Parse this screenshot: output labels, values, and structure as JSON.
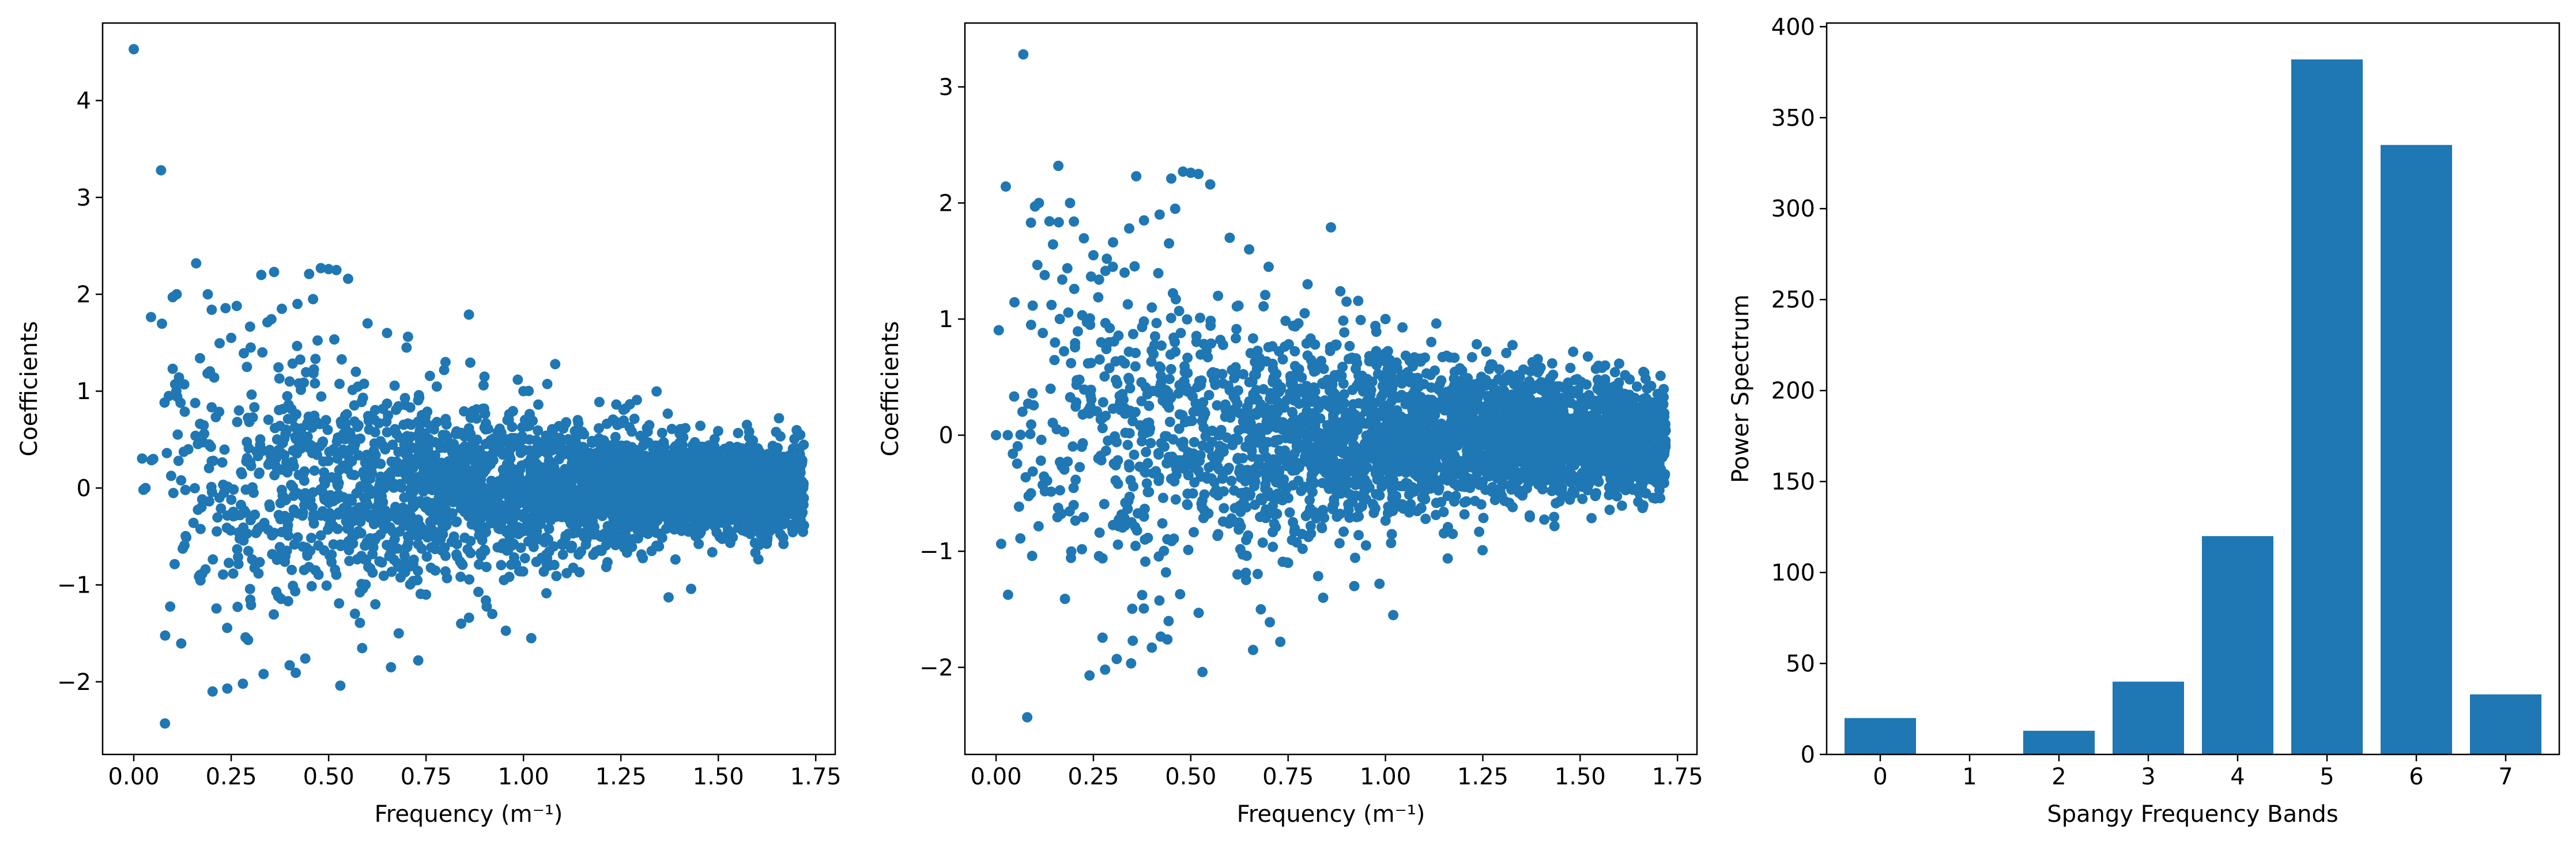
{
  "colors": {
    "marker": "#1f77b4",
    "axes": "#000000",
    "background": "#ffffff"
  },
  "chart_data": [
    {
      "type": "scatter",
      "title": "",
      "xlabel": "Frequency (m⁻¹)",
      "ylabel": "Coefficients",
      "xlim": [
        -0.08,
        1.8
      ],
      "ylim": [
        -2.75,
        4.8
      ],
      "xticks": [
        0.0,
        0.25,
        0.5,
        0.75,
        1.0,
        1.25,
        1.5,
        1.75
      ],
      "xtick_labels": [
        "0.00",
        "0.25",
        "0.50",
        "0.75",
        "1.00",
        "1.25",
        "1.50",
        "1.75"
      ],
      "yticks": [
        -2,
        -1,
        0,
        1,
        2,
        3,
        4
      ],
      "ytick_labels": [
        "−2",
        "−1",
        "0",
        "1",
        "2",
        "3",
        "4"
      ],
      "grid": false,
      "x": [
        0.0,
        0.07,
        0.1,
        0.11,
        0.16,
        0.19,
        0.2,
        0.12,
        0.17,
        0.36,
        0.45,
        0.48,
        0.5,
        0.52,
        0.55,
        0.86,
        0.46,
        0.38,
        0.42,
        0.3,
        0.25,
        0.33,
        0.6,
        0.65,
        0.7,
        0.8,
        0.9,
        1.0,
        0.05,
        0.03,
        0.09,
        0.14,
        0.22,
        0.27,
        0.4,
        0.57,
        0.62,
        0.68,
        0.75,
        0.95,
        1.02,
        0.08,
        0.24,
        0.28,
        0.4,
        0.44,
        0.53,
        0.66,
        0.73,
        0.84,
        0.92
      ],
      "y": [
        4.53,
        3.28,
        1.97,
        2.0,
        2.32,
        2.0,
        1.84,
        0.88,
        1.34,
        2.23,
        2.21,
        2.27,
        2.26,
        2.25,
        2.16,
        1.79,
        1.95,
        1.85,
        1.9,
        1.45,
        1.55,
        1.4,
        1.7,
        1.6,
        1.45,
        1.3,
        1.15,
        1.0,
        0.3,
        0.0,
        0.95,
        0.4,
        -0.1,
        0.8,
        1.1,
        1.2,
        -1.2,
        -1.5,
        -1.1,
        -0.95,
        -1.55,
        -2.43,
        -2.07,
        -2.02,
        -1.83,
        -1.76,
        -2.04,
        -1.85,
        -1.78,
        -1.4,
        -1.3
      ],
      "x_max": 1.72,
      "cloud_envelope": {
        "note_free": true
      }
    },
    {
      "type": "scatter",
      "title": "",
      "xlabel": "Frequency (m⁻¹)",
      "ylabel": "Coefficients",
      "xlim": [
        -0.08,
        1.8
      ],
      "ylim": [
        -2.75,
        3.55
      ],
      "xticks": [
        0.0,
        0.25,
        0.5,
        0.75,
        1.0,
        1.25,
        1.5,
        1.75
      ],
      "xtick_labels": [
        "0.00",
        "0.25",
        "0.50",
        "0.75",
        "1.00",
        "1.25",
        "1.50",
        "1.75"
      ],
      "yticks": [
        -2,
        -1,
        0,
        1,
        2,
        3
      ],
      "ytick_labels": [
        "−2",
        "−1",
        "0",
        "1",
        "2",
        "3"
      ],
      "grid": false,
      "x": [
        0.07,
        0.1,
        0.11,
        0.16,
        0.19,
        0.2,
        0.12,
        0.17,
        0.36,
        0.45,
        0.48,
        0.5,
        0.52,
        0.55,
        0.86,
        0.46,
        0.38,
        0.42,
        0.3,
        0.25,
        0.33,
        0.6,
        0.65,
        0.7,
        0.8,
        0.9,
        1.0,
        0.0,
        0.03,
        0.09,
        0.14,
        0.22,
        0.27,
        0.4,
        0.57,
        0.62,
        0.68,
        0.75,
        0.95,
        1.02,
        0.08,
        0.24,
        0.28,
        0.4,
        0.44,
        0.53,
        0.66,
        0.73,
        0.84,
        0.92
      ],
      "y": [
        3.28,
        1.97,
        2.0,
        2.32,
        2.0,
        1.84,
        0.88,
        1.34,
        2.23,
        2.21,
        2.27,
        2.26,
        2.25,
        2.16,
        1.79,
        1.95,
        1.85,
        1.9,
        1.45,
        1.55,
        1.4,
        1.7,
        1.6,
        1.45,
        1.3,
        1.15,
        1.0,
        0.0,
        0.0,
        0.95,
        0.4,
        -0.1,
        0.8,
        1.1,
        1.2,
        -1.2,
        -1.5,
        -1.1,
        -0.95,
        -1.55,
        -2.43,
        -2.07,
        -2.02,
        -1.83,
        -1.76,
        -2.04,
        -1.85,
        -1.78,
        -1.4,
        -1.3
      ],
      "x_max": 1.72
    },
    {
      "type": "bar",
      "title": "",
      "xlabel": "Spangy Frequency Bands",
      "ylabel": "Power Spectrum",
      "categories": [
        "0",
        "1",
        "2",
        "3",
        "4",
        "5",
        "6",
        "7"
      ],
      "values": [
        20,
        0,
        13,
        40,
        120,
        382,
        335,
        33
      ],
      "ylim": [
        0,
        402
      ],
      "yticks": [
        0,
        50,
        100,
        150,
        200,
        250,
        300,
        350,
        400
      ],
      "ytick_labels": [
        "0",
        "50",
        "100",
        "150",
        "200",
        "250",
        "300",
        "350",
        "400"
      ],
      "grid": false
    }
  ]
}
